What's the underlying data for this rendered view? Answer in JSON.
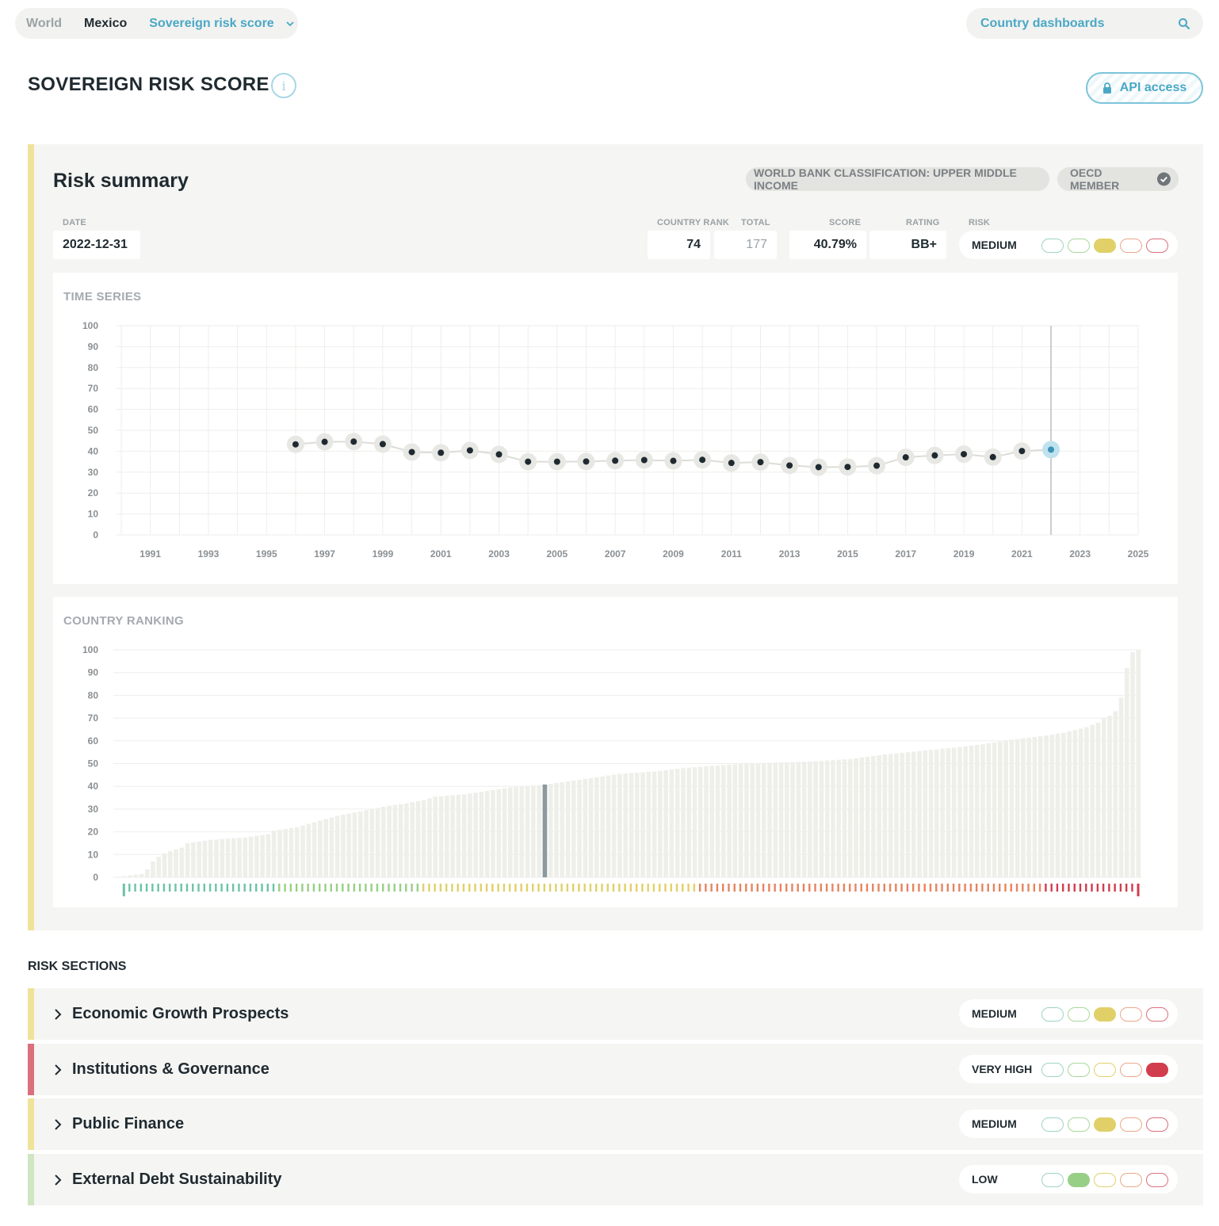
{
  "nav": {
    "world": "World",
    "country": "Mexico",
    "current": "Sovereign risk score",
    "search_placeholder": "Country dashboards"
  },
  "page": {
    "title": "SOVEREIGN RISK SCORE",
    "info": "i",
    "api_label": "API access"
  },
  "summary": {
    "title": "Risk summary",
    "classification": "WORLD BANK CLASSIFICATION: UPPER MIDDLE INCOME",
    "oecd": "OECD MEMBER",
    "date_label": "DATE",
    "date": "2022-12-31",
    "rank_label": "COUNTRY RANK",
    "rank": "74",
    "total_label": "TOTAL",
    "total": "177",
    "score_label": "SCORE",
    "score": "40.79%",
    "rating_label": "RATING",
    "rating": "BB+",
    "risk_label": "RISK",
    "risk": "MEDIUM",
    "risk_level": 3
  },
  "colors": {
    "level1": "#9fd3c7",
    "level2": "#a8d89a",
    "level3": "#e2d06a",
    "level4": "#e9a98a",
    "level5": "#d9707c",
    "fill1": "#6cc3a6",
    "fill2": "#98cf86",
    "fill3": "#e1d068",
    "fill4": "#e6845f",
    "fill5": "#d23d4e"
  },
  "chart_data": [
    {
      "type": "line",
      "title": "TIME SERIES",
      "x": [
        1996,
        1997,
        1998,
        1999,
        2000,
        2001,
        2002,
        2003,
        2004,
        2005,
        2006,
        2007,
        2008,
        2009,
        2010,
        2011,
        2012,
        2013,
        2014,
        2015,
        2016,
        2017,
        2018,
        2019,
        2020,
        2021,
        2022
      ],
      "y": [
        43.3,
        44.5,
        44.6,
        43.4,
        39.6,
        39.3,
        40.4,
        38.5,
        35.0,
        35.0,
        35.1,
        35.5,
        35.8,
        35.4,
        35.9,
        34.4,
        34.8,
        33.2,
        32.4,
        32.5,
        33.1,
        37.1,
        38.0,
        38.6,
        37.2,
        40.1,
        40.79
      ],
      "xticks": [
        "1991",
        "1993",
        "1995",
        "1997",
        "1999",
        "2001",
        "2003",
        "2005",
        "2007",
        "2009",
        "2011",
        "2013",
        "2015",
        "2017",
        "2019",
        "2021",
        "2023",
        "2025"
      ],
      "yticks": [
        "0",
        "10",
        "20",
        "30",
        "40",
        "50",
        "60",
        "70",
        "80",
        "90",
        "100"
      ],
      "xlim": [
        1990,
        2025
      ],
      "ylim": [
        0,
        100
      ],
      "highlight_x": 2022,
      "grid": true
    },
    {
      "type": "bar",
      "title": "COUNTRY RANKING",
      "n_countries": 177,
      "highlight_rank": 74,
      "highlight_value": 40.79,
      "yticks": [
        "0",
        "10",
        "20",
        "30",
        "40",
        "50",
        "60",
        "70",
        "80",
        "90",
        "100"
      ],
      "ylim": [
        0,
        100
      ],
      "anchors": [
        [
          1,
          0.5
        ],
        [
          4,
          1.5
        ],
        [
          5,
          3.5
        ],
        [
          6,
          7
        ],
        [
          7,
          9
        ],
        [
          8,
          10.5
        ],
        [
          9,
          11.5
        ],
        [
          11,
          13
        ],
        [
          12,
          15
        ],
        [
          16,
          16.5
        ],
        [
          22,
          17.5
        ],
        [
          26,
          19
        ],
        [
          27,
          20.5
        ],
        [
          31,
          22
        ],
        [
          35,
          25
        ],
        [
          38,
          27
        ],
        [
          41,
          28.5
        ],
        [
          44,
          30
        ],
        [
          47,
          31.5
        ],
        [
          50,
          32.5
        ],
        [
          53,
          34
        ],
        [
          55,
          35.5
        ],
        [
          60,
          36.5
        ],
        [
          64,
          38
        ],
        [
          68,
          39.5
        ],
        [
          73,
          40.5
        ],
        [
          74,
          40.79
        ],
        [
          76,
          41.5
        ],
        [
          79,
          42.5
        ],
        [
          83,
          44
        ],
        [
          87,
          45.5
        ],
        [
          93,
          46.5
        ],
        [
          98,
          48
        ],
        [
          103,
          49
        ],
        [
          109,
          50
        ],
        [
          115,
          50.5
        ],
        [
          121,
          51
        ],
        [
          127,
          52
        ],
        [
          133,
          54
        ],
        [
          139,
          55.5
        ],
        [
          145,
          57
        ],
        [
          150,
          58.5
        ],
        [
          155,
          60.5
        ],
        [
          160,
          62
        ],
        [
          164,
          63.5
        ],
        [
          168,
          66
        ],
        [
          170,
          68
        ],
        [
          171,
          70
        ],
        [
          172,
          71
        ],
        [
          173,
          73
        ],
        [
          174,
          79
        ],
        [
          175,
          92
        ],
        [
          176,
          99
        ],
        [
          177,
          100
        ]
      ],
      "risk_bands": [
        {
          "level": 1,
          "from": 1,
          "to": 27
        },
        {
          "level": 2,
          "from": 27,
          "to": 52
        },
        {
          "level": 3,
          "from": 52,
          "to": 100
        },
        {
          "level": 4,
          "from": 100,
          "to": 160
        },
        {
          "level": 5,
          "from": 160,
          "to": 177
        }
      ]
    }
  ],
  "sections": {
    "title": "RISK SECTIONS",
    "items": [
      {
        "name": "Economic Growth Prospects",
        "risk": "MEDIUM",
        "level": 3
      },
      {
        "name": "Institutions & Governance",
        "risk": "VERY HIGH",
        "level": 5
      },
      {
        "name": "Public Finance",
        "risk": "MEDIUM",
        "level": 3
      },
      {
        "name": "External Debt Sustainability",
        "risk": "LOW",
        "level": 2
      }
    ]
  }
}
